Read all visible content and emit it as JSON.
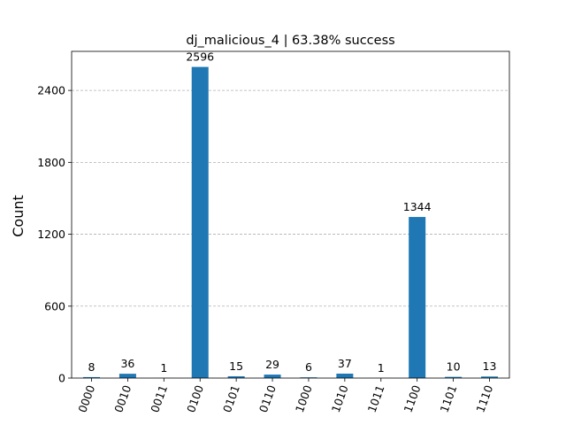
{
  "chart_data": {
    "type": "bar",
    "title": "dj_malicious_4 | 63.38% success",
    "xlabel": "",
    "ylabel": "Count",
    "categories": [
      "0000",
      "0010",
      "0011",
      "0100",
      "0101",
      "0110",
      "1000",
      "1010",
      "1011",
      "1100",
      "1101",
      "1110"
    ],
    "values": [
      8,
      36,
      1,
      2596,
      15,
      29,
      6,
      37,
      1,
      1344,
      10,
      13
    ],
    "data_labels": [
      "8",
      "36",
      "1",
      "2596",
      "15",
      "29",
      "6",
      "37",
      "1",
      "1344",
      "10",
      "13"
    ],
    "ylim": [
      0,
      2726
    ],
    "yticks": [
      0,
      600,
      1200,
      1800,
      2400
    ],
    "ytick_labels": [
      "0",
      "600",
      "1200",
      "1800",
      "2400"
    ],
    "grid": "y-dashed",
    "bar_color": "#1f77b4",
    "grid_color": "#b0b0b0"
  }
}
